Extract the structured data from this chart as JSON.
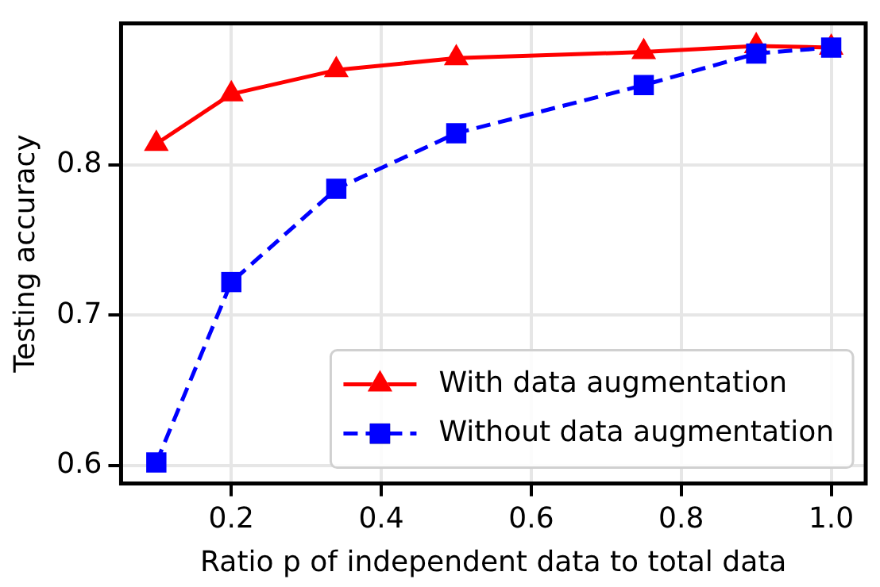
{
  "chart_data": {
    "type": "line",
    "xlabel": "Ratio p of independent data to total data",
    "ylabel": "Testing accuracy",
    "xlim": [
      0.053,
      1.046
    ],
    "xticks": [
      0.2,
      0.4,
      0.6,
      0.8,
      {
        "value": 1,
        "label": "1.0"
      }
    ],
    "ylim": [
      0.588,
      0.894
    ],
    "yticks": [
      0.6,
      0.7,
      0.8
    ],
    "x": [
      0.1,
      0.2,
      0.34,
      0.5,
      0.75,
      0.9,
      1.0
    ],
    "series": [
      {
        "name": "With data augmentation",
        "color": "#ff0000",
        "marker": "triangle",
        "line_style": "solid",
        "values": [
          0.814,
          0.847,
          0.863,
          0.871,
          0.875,
          0.879,
          0.878
        ]
      },
      {
        "name": "Without data augmentation",
        "color": "#0000ff",
        "marker": "square",
        "line_style": "dashed",
        "values": [
          0.602,
          0.722,
          0.784,
          0.821,
          0.853,
          0.874,
          0.878
        ]
      }
    ],
    "grid": true,
    "legend": "bottom right"
  }
}
